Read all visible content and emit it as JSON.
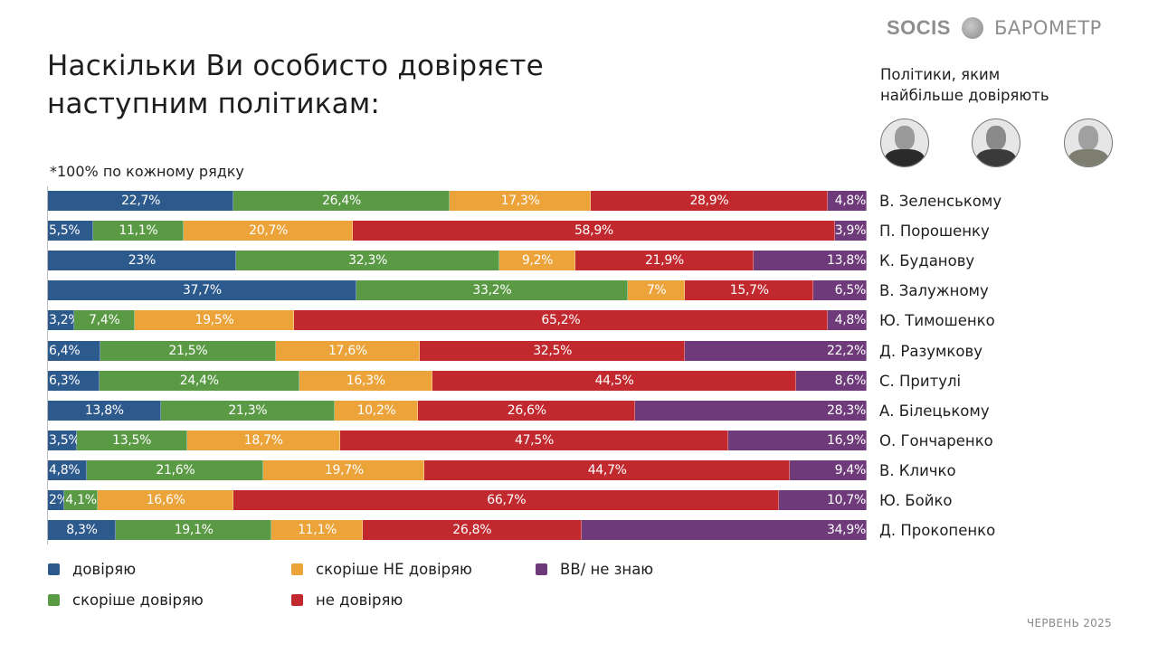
{
  "header": {
    "title_line1": "Наскільки Ви особисто довіряєте",
    "title_line2": "наступним політикам:",
    "note": "*100% по кожному рядку",
    "logo_brand": "SOCIS",
    "logo_product": "БАРОМЕТР",
    "top_label_line1": "Політики, яким",
    "top_label_line2": "найбільше довіряють",
    "date": "ЧЕРВЕНЬ 2025"
  },
  "colors": {
    "trust": "#2d5a8c",
    "rather_trust": "#5b9a45",
    "rather_not_trust": "#eba33a",
    "not_trust": "#c1292e",
    "dont_know": "#6e3a7a"
  },
  "chart_data": {
    "type": "bar",
    "orientation": "horizontal-stacked-100",
    "title": "Наскільки Ви особисто довіряєте наступним політикам:",
    "legend_position": "bottom",
    "series": [
      {
        "name": "довіряю",
        "key": "trust"
      },
      {
        "name": "скоріше довіряю",
        "key": "rather_trust"
      },
      {
        "name": "скоріше НЕ довіряю",
        "key": "rather_not_trust"
      },
      {
        "name": "не довіряю",
        "key": "not_trust"
      },
      {
        "name": "ВВ/ не знаю",
        "key": "dont_know"
      }
    ],
    "rows": [
      {
        "name": "В. Зеленському",
        "values": [
          22.7,
          26.4,
          17.3,
          28.9,
          4.8
        ],
        "labels": [
          "22,7%",
          "26,4%",
          "17,3%",
          "28,9%",
          "4,8%"
        ]
      },
      {
        "name": "П. Порошенку",
        "values": [
          5.5,
          11.1,
          20.7,
          58.9,
          3.9
        ],
        "labels": [
          "5,5%",
          "11,1%",
          "20,7%",
          "58,9%",
          "3,9%"
        ]
      },
      {
        "name": "К. Буданову",
        "values": [
          23,
          32.3,
          9.2,
          21.9,
          13.8
        ],
        "labels": [
          "23%",
          "32,3%",
          "9,2%",
          "21,9%",
          "13,8%"
        ]
      },
      {
        "name": "В. Залужному",
        "values": [
          37.7,
          33.2,
          7,
          15.7,
          6.5
        ],
        "labels": [
          "37,7%",
          "33,2%",
          "7%",
          "15,7%",
          "6,5%"
        ]
      },
      {
        "name": "Ю. Тимошенко",
        "values": [
          3.2,
          7.4,
          19.5,
          65.2,
          4.8
        ],
        "labels": [
          "3,2%",
          "7,4%",
          "19,5%",
          "65,2%",
          "4,8%"
        ]
      },
      {
        "name": "Д. Разумкову",
        "values": [
          6.4,
          21.5,
          17.6,
          32.5,
          22.2
        ],
        "labels": [
          "6,4%",
          "21,5%",
          "17,6%",
          "32,5%",
          "22,2%"
        ]
      },
      {
        "name": "С. Притулі",
        "values": [
          6.3,
          24.4,
          16.3,
          44.5,
          8.6
        ],
        "labels": [
          "6,3%",
          "24,4%",
          "16,3%",
          "44,5%",
          "8,6%"
        ]
      },
      {
        "name": "А. Білецькому",
        "values": [
          13.8,
          21.3,
          10.2,
          26.6,
          28.3
        ],
        "labels": [
          "13,8%",
          "21,3%",
          "10,2%",
          "26,6%",
          "28,3%"
        ]
      },
      {
        "name": "О. Гончаренко",
        "values": [
          3.5,
          13.5,
          18.7,
          47.5,
          16.9
        ],
        "labels": [
          "3,5%",
          "13,5%",
          "18,7%",
          "47,5%",
          "16,9%"
        ]
      },
      {
        "name": "В. Кличко",
        "values": [
          4.8,
          21.6,
          19.7,
          44.7,
          9.4
        ],
        "labels": [
          "4,8%",
          "21,6%",
          "19,7%",
          "44,7%",
          "9,4%"
        ]
      },
      {
        "name": "Ю. Бойко",
        "values": [
          2,
          4.1,
          16.6,
          66.7,
          10.7
        ],
        "labels": [
          "2%",
          "4,1%",
          "16,6%",
          "66,7%",
          "10,7%"
        ]
      },
      {
        "name": "Д. Прокопенко",
        "values": [
          8.3,
          19.1,
          11.1,
          26.8,
          34.9
        ],
        "labels": [
          "8,3%",
          "19,1%",
          "11,1%",
          "26,8%",
          "34,9%"
        ]
      }
    ]
  }
}
